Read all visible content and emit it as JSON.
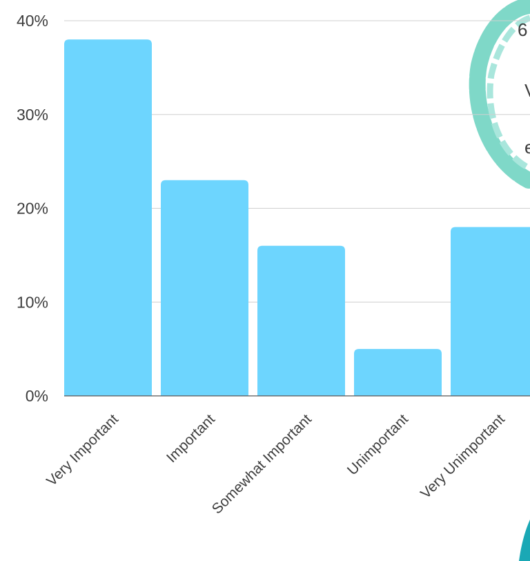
{
  "chart_data": {
    "type": "bar",
    "categories": [
      "Very Important",
      "Important",
      "Somewhat Important",
      "Unimportant",
      "Very Unimportant"
    ],
    "values": [
      38,
      23,
      16,
      5,
      18
    ],
    "ylim": [
      0,
      40
    ],
    "yticks": [
      "0%",
      "10%",
      "20%",
      "30%",
      "40%"
    ],
    "grid": true,
    "title": "",
    "xlabel": "",
    "ylabel": ""
  },
  "colors": {
    "bar": "#6dd5fe",
    "grid": "#cfcfcf",
    "axis": "#555555",
    "decor_ring": "#7fd8c8",
    "decor_corner": "#1aa8b5"
  },
  "callout": {
    "cut_text": [
      "6",
      "V",
      "e"
    ]
  }
}
